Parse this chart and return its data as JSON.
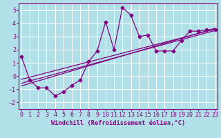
{
  "title": "",
  "xlabel": "Windchill (Refroidissement éolien,°C)",
  "ylabel": "",
  "bg_color": "#b2e0e8",
  "grid_color": "#ffffff",
  "line_color": "#800080",
  "xticks": [
    0,
    1,
    2,
    3,
    4,
    5,
    6,
    7,
    8,
    9,
    10,
    11,
    12,
    13,
    14,
    15,
    16,
    17,
    18,
    19,
    20,
    21,
    22,
    23
  ],
  "yticks": [
    -2,
    -1,
    0,
    1,
    2,
    3,
    4,
    5
  ],
  "xlim": [
    -0.3,
    23.3
  ],
  "ylim": [
    -2.5,
    5.5
  ],
  "series": [
    [
      0,
      1.5
    ],
    [
      1,
      -0.3
    ],
    [
      2,
      -0.9
    ],
    [
      3,
      -0.9
    ],
    [
      4,
      -1.5
    ],
    [
      5,
      -1.2
    ],
    [
      6,
      -0.7
    ],
    [
      7,
      -0.3
    ],
    [
      8,
      1.1
    ],
    [
      9,
      1.9
    ],
    [
      10,
      4.1
    ],
    [
      11,
      2.0
    ],
    [
      12,
      5.2
    ],
    [
      13,
      4.6
    ],
    [
      14,
      3.0
    ],
    [
      15,
      3.1
    ],
    [
      16,
      1.9
    ],
    [
      17,
      1.9
    ],
    [
      18,
      1.9
    ],
    [
      19,
      2.7
    ],
    [
      20,
      3.4
    ],
    [
      21,
      3.4
    ],
    [
      22,
      3.5
    ],
    [
      23,
      3.5
    ]
  ],
  "regression_lines": [
    {
      "x0": 0,
      "y0": -0.55,
      "x1": 23,
      "y1": 3.45
    },
    {
      "x0": 0,
      "y0": -0.25,
      "x1": 23,
      "y1": 3.55
    },
    {
      "x0": 0,
      "y0": -0.75,
      "x1": 23,
      "y1": 3.62
    }
  ],
  "tick_fontsize": 6.0,
  "xlabel_fontsize": 6.2,
  "marker_size": 2.5,
  "line_width": 0.9
}
